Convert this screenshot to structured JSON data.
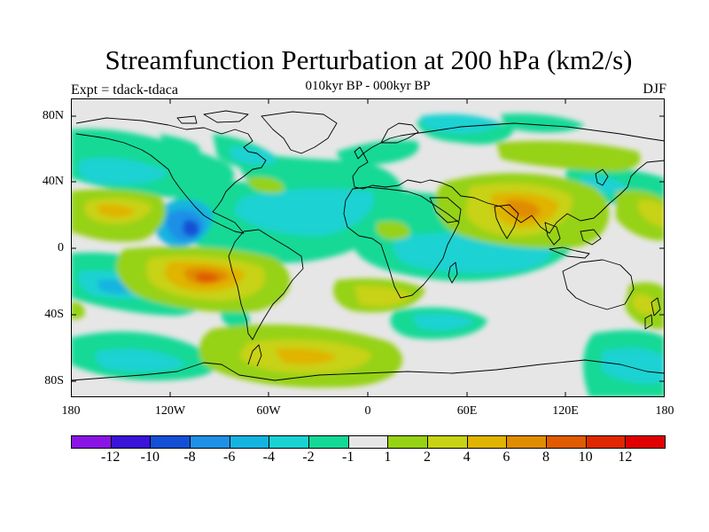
{
  "title": "Streamfunction Perturbation at 200 hPa (km2/s)",
  "subtitle": "010kyr BP - 000kyr BP",
  "expt_label": "Expt = tdack-tdaca",
  "season": "DJF",
  "lat_labels": [
    "80N",
    "40N",
    "0",
    "40S",
    "80S"
  ],
  "lon_labels": [
    "180",
    "120W",
    "60W",
    "0",
    "60E",
    "120E",
    "180"
  ],
  "colorbar": {
    "colors": [
      "#8a14e6",
      "#3a14d9",
      "#1450d6",
      "#1e90e6",
      "#14b4e0",
      "#1ad2d2",
      "#14d996",
      "#e6e6e6",
      "#96d214",
      "#c8d214",
      "#e0b400",
      "#e08c00",
      "#e05a00",
      "#e02800",
      "#e00000"
    ],
    "labels": [
      "-12",
      "-10",
      "-8",
      "-6",
      "-4",
      "-2",
      "-1",
      "1",
      "2",
      "4",
      "6",
      "8",
      "10",
      "12"
    ]
  },
  "colors": {
    "land_bg": "#e6e6e6",
    "coast": "#000000"
  }
}
